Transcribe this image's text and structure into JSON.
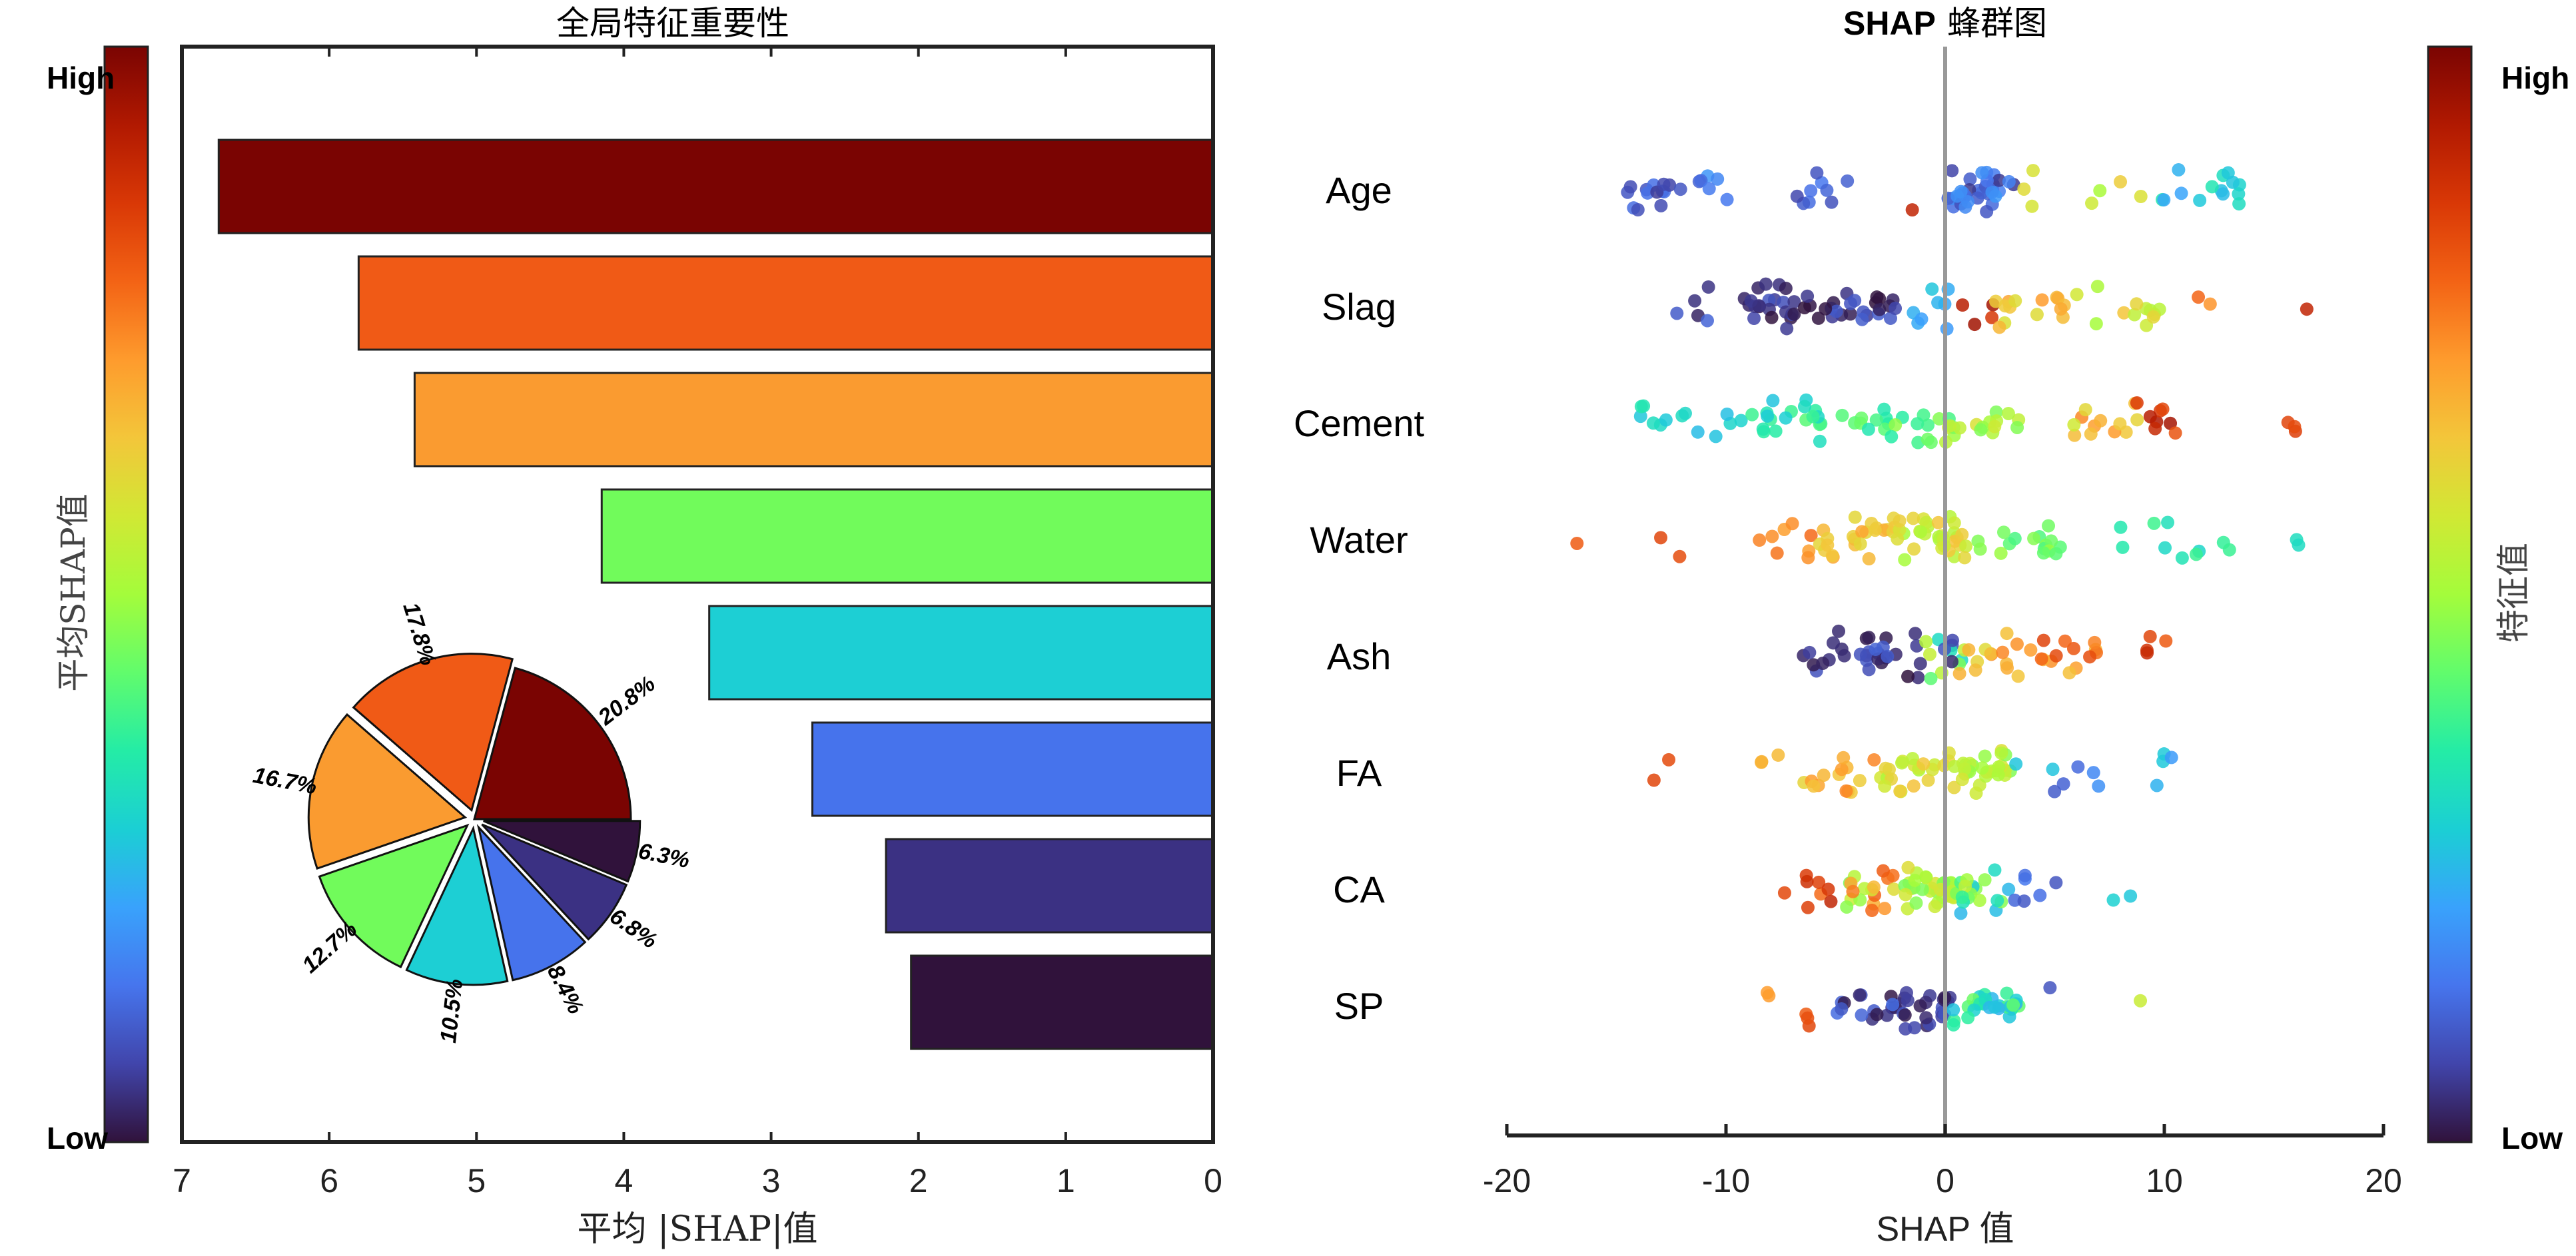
{
  "colormap": [
    "#30123b",
    "#4145ab",
    "#4675ed",
    "#39a2fc",
    "#1bcfd4",
    "#24eca6",
    "#61fc6c",
    "#a4fc3b",
    "#d1e834",
    "#f3c63a",
    "#fe9b2d",
    "#f36315",
    "#d93806",
    "#b11901",
    "#7a0402"
  ],
  "chart_data": [
    {
      "type": "bar",
      "orientation": "horizontal",
      "title": "全局特征重要性",
      "xlabel": "平均 |SHAP|值",
      "ylabel": "",
      "xlim": [
        0,
        7
      ],
      "x_direction": "reversed",
      "xticks": [
        "7",
        "6",
        "5",
        "4",
        "3",
        "2",
        "1",
        "0"
      ],
      "categories": [
        "Age",
        "Slag",
        "Cement",
        "Water",
        "Ash",
        "FA",
        "CA",
        "SP"
      ],
      "values": [
        6.75,
        5.8,
        5.42,
        4.15,
        3.42,
        2.72,
        2.22,
        2.05
      ],
      "colors": [
        "#7a0402",
        "#f05a16",
        "#fa9b30",
        "#71fb5b",
        "#1dcfd4",
        "#4673ec",
        "#3b3183",
        "#30123b"
      ],
      "colorbar": {
        "label": "平均SHAP值",
        "high": "High",
        "low": "Low"
      }
    },
    {
      "type": "pie",
      "title": "",
      "labels": [
        "Age",
        "Slag",
        "Cement",
        "Water",
        "Ash",
        "FA",
        "CA",
        "SP"
      ],
      "percent_labels": [
        "20.8%",
        "17.8%",
        "16.7%",
        "12.7%",
        "10.5%",
        "8.4%",
        "6.8%",
        "6.3%"
      ],
      "values": [
        20.8,
        17.8,
        16.7,
        12.7,
        10.5,
        8.4,
        6.8,
        6.3
      ],
      "colors": [
        "#7a0402",
        "#f05a16",
        "#fa9b30",
        "#71fb5b",
        "#1dcfd4",
        "#4673ec",
        "#3b3183",
        "#30123b"
      ]
    },
    {
      "type": "scatter",
      "subtype": "beeswarm",
      "title_bold": "SHAP",
      "title_rest": "蜂群图",
      "xlabel": "SHAP 值",
      "ylabel": "",
      "xlim": [
        -20,
        20
      ],
      "xticks": [
        "-20",
        "-10",
        "0",
        "10",
        "20"
      ],
      "features": [
        "Age",
        "Slag",
        "Cement",
        "Water",
        "Ash",
        "FA",
        "CA",
        "SP"
      ],
      "colorbar": {
        "label": "特征值",
        "high": "High",
        "low": "Low"
      },
      "series": [
        {
          "name": "Age",
          "clusters": [
            [
              -14.8,
              -12.0,
              14,
              0.05,
              0.15
            ],
            [
              -11.8,
              -9.5,
              6,
              0.1,
              0.2
            ],
            [
              -7.0,
              -4.2,
              9,
              0.05,
              0.15
            ],
            [
              -1.5,
              -1.5,
              1,
              0.9,
              0.9
            ],
            [
              0.0,
              3.2,
              34,
              0.05,
              0.2
            ],
            [
              3.4,
              4.2,
              3,
              0.55,
              0.7
            ],
            [
              6.5,
              9.5,
              4,
              0.5,
              0.7
            ],
            [
              9.5,
              13.5,
              14,
              0.2,
              0.35
            ]
          ]
        },
        {
          "name": "Slag",
          "clusters": [
            [
              -12.3,
              -10.0,
              5,
              0.02,
              0.12
            ],
            [
              -9.2,
              -6.8,
              22,
              0.0,
              0.1
            ],
            [
              -6.8,
              -4.5,
              10,
              0.0,
              0.12
            ],
            [
              -4.5,
              -2.0,
              16,
              0.0,
              0.12
            ],
            [
              -2.0,
              0.8,
              8,
              0.2,
              0.3
            ],
            [
              0.5,
              2.2,
              4,
              0.85,
              0.95
            ],
            [
              2.0,
              5.5,
              14,
              0.5,
              0.75
            ],
            [
              6.0,
              10.0,
              12,
              0.5,
              0.65
            ],
            [
              11.0,
              13.0,
              2,
              0.7,
              0.8
            ],
            [
              16.5,
              16.5,
              1,
              0.9,
              0.9
            ]
          ]
        },
        {
          "name": "Cement",
          "clusters": [
            [
              -14.0,
              -10.0,
              10,
              0.25,
              0.35
            ],
            [
              -10.0,
              -6.0,
              14,
              0.25,
              0.4
            ],
            [
              -6.5,
              -2.5,
              18,
              0.3,
              0.45
            ],
            [
              -2.5,
              0.5,
              12,
              0.35,
              0.5
            ],
            [
              0.0,
              3.5,
              16,
              0.45,
              0.6
            ],
            [
              5.5,
              9.0,
              12,
              0.55,
              0.75
            ],
            [
              8.5,
              11.5,
              8,
              0.8,
              0.95
            ],
            [
              15.5,
              16.0,
              3,
              0.8,
              0.85
            ]
          ]
        },
        {
          "name": "Water",
          "clusters": [
            [
              -16.8,
              -16.8,
              1,
              0.8,
              0.8
            ],
            [
              -13.8,
              -11.0,
              2,
              0.8,
              0.85
            ],
            [
              -9.0,
              -6.0,
              8,
              0.7,
              0.8
            ],
            [
              -6.0,
              -2.5,
              20,
              0.6,
              0.7
            ],
            [
              -2.5,
              1.0,
              34,
              0.5,
              0.65
            ],
            [
              1.0,
              5.5,
              16,
              0.4,
              0.5
            ],
            [
              7.5,
              13.0,
              10,
              0.3,
              0.4
            ],
            [
              15.5,
              16.5,
              2,
              0.3,
              0.35
            ]
          ]
        },
        {
          "name": "Ash",
          "clusters": [
            [
              -7.0,
              -4.0,
              10,
              0.0,
              0.1
            ],
            [
              -4.0,
              -1.0,
              22,
              0.0,
              0.12
            ],
            [
              -1.0,
              1.0,
              14,
              0.0,
              0.7
            ],
            [
              1.0,
              3.5,
              12,
              0.6,
              0.75
            ],
            [
              3.5,
              7.0,
              14,
              0.65,
              0.85
            ],
            [
              7.5,
              11.0,
              4,
              0.8,
              0.9
            ]
          ]
        },
        {
          "name": "FA",
          "clusters": [
            [
              -14.0,
              -11.5,
              2,
              0.8,
              0.85
            ],
            [
              -8.5,
              -7.0,
              3,
              0.6,
              0.75
            ],
            [
              -6.5,
              -3.0,
              14,
              0.6,
              0.75
            ],
            [
              -3.0,
              0.5,
              24,
              0.5,
              0.65
            ],
            [
              0.5,
              3.0,
              26,
              0.45,
              0.6
            ],
            [
              3.0,
              5.5,
              4,
              0.1,
              0.3
            ],
            [
              5.5,
              7.5,
              3,
              0.1,
              0.2
            ],
            [
              9.0,
              11.5,
              4,
              0.2,
              0.3
            ]
          ]
        },
        {
          "name": "CA",
          "clusters": [
            [
              -7.5,
              -4.5,
              8,
              0.75,
              0.9
            ],
            [
              -4.5,
              -2.0,
              18,
              0.45,
              0.8
            ],
            [
              -2.0,
              0.5,
              34,
              0.45,
              0.6
            ],
            [
              0.5,
              3.0,
              18,
              0.2,
              0.55
            ],
            [
              3.0,
              5.5,
              6,
              0.05,
              0.15
            ],
            [
              6.5,
              8.5,
              2,
              0.25,
              0.3
            ]
          ]
        },
        {
          "name": "SP",
          "clusters": [
            [
              -9.0,
              -8.0,
              2,
              0.7,
              0.75
            ],
            [
              -7.0,
              -6.0,
              3,
              0.75,
              0.85
            ],
            [
              -5.0,
              -2.0,
              16,
              0.0,
              0.15
            ],
            [
              -2.0,
              0.3,
              22,
              0.0,
              0.1
            ],
            [
              0.3,
              3.5,
              28,
              0.2,
              0.45
            ],
            [
              4.5,
              4.8,
              1,
              0.05,
              0.1
            ],
            [
              8.8,
              9.0,
              1,
              0.55,
              0.6
            ]
          ]
        }
      ]
    }
  ]
}
